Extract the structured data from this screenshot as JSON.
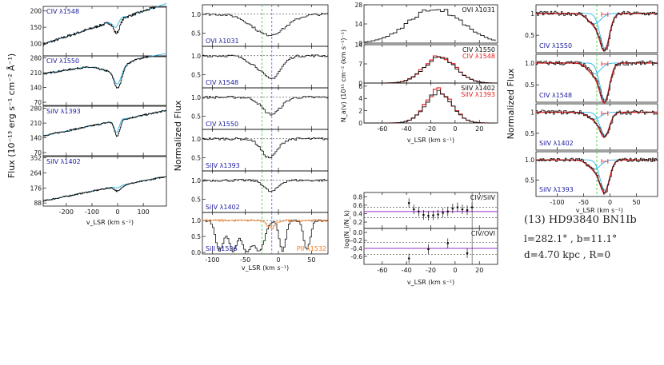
{
  "colors": {
    "black": "#111111",
    "blue": "#1a1aa0",
    "cyan": "#29b6e8",
    "red": "#e02020",
    "green": "#33cc33",
    "dashblue": "#3b6fd8",
    "purple": "#9a2fc7",
    "orange": "#f07a20",
    "gray": "#888888"
  },
  "star": {
    "name": "(13) HD93840 BN1Ib",
    "coords": "l=282.1°  , b=11.1°",
    "distance": "d=4.70 kpc  , R=0"
  },
  "chart_data": [
    {
      "id": "flux",
      "type": "line",
      "ylabel": "Flux  (10⁻¹³ erg s⁻¹ cm⁻² Å⁻¹)",
      "xlabel": "v_LSR  (km s⁻¹)",
      "xlim": [
        -290,
        190
      ],
      "xticks": [
        -200,
        -100,
        0,
        100
      ],
      "panels": [
        {
          "label": "CIV λ1548",
          "yticks": [
            "200",
            "150",
            "100"
          ],
          "yvals": [
            200,
            150,
            100
          ],
          "ylim": [
            62,
            214
          ]
        },
        {
          "label": "CIV λ1550",
          "yticks": [
            "280",
            "210",
            "140",
            "70"
          ],
          "yvals": [
            280,
            210,
            140,
            70
          ],
          "ylim": [
            55,
            290
          ]
        },
        {
          "label": "SiIV λ1393",
          "yticks": [
            "280",
            "210",
            "140",
            "70"
          ],
          "yvals": [
            280,
            210,
            140,
            70
          ],
          "ylim": [
            55,
            290
          ]
        },
        {
          "label": "SiIV λ1402",
          "yticks": [
            "352",
            "264",
            "176",
            "88"
          ],
          "yvals": [
            352,
            264,
            176,
            88
          ],
          "ylim": [
            70,
            360
          ]
        }
      ]
    },
    {
      "id": "normflux",
      "type": "line",
      "ylabel": "Normalized Flux",
      "xlabel": "v_LSR  (km s⁻¹)",
      "xlim": [
        -115,
        75
      ],
      "xticks": [
        -100,
        -50,
        0,
        50
      ],
      "vlines": [
        -25,
        -10
      ],
      "panels": [
        {
          "label": "OVI λ1031",
          "yticks": [
            "1.0",
            "0.5"
          ]
        },
        {
          "label": "CIV λ1548",
          "yticks": [
            "1.0",
            "0.5"
          ]
        },
        {
          "label": "CIV λ1550",
          "yticks": [
            "1.0",
            "0.5"
          ]
        },
        {
          "label": "SiIV λ1393",
          "yticks": [
            "1.0",
            "0.5"
          ]
        },
        {
          "label": "SiIV λ1402",
          "yticks": [
            "1.0",
            "0.5"
          ]
        },
        {
          "label": "SiII λ1526",
          "label2": "PII λ1532",
          "yticks": [
            "1.0",
            "0.5",
            "0.0"
          ]
        }
      ]
    },
    {
      "id": "nav",
      "type": "line",
      "ylabel": "N_a(v)  (10¹¹ cm⁻² (km s⁻¹)⁻¹)",
      "xlabel": "v_LSR  (km s⁻¹)",
      "xlim": [
        -75,
        35
      ],
      "xticks": [
        -60,
        -40,
        -20,
        0,
        20
      ],
      "panels": [
        {
          "label": "OVI λ1031",
          "yticks": [
            "28",
            "14",
            "0"
          ],
          "yvals": [
            28,
            14,
            0
          ]
        },
        {
          "label": "CIV λ1550",
          "label2": "CIV λ1548",
          "yticks": [
            "14",
            "7",
            "0"
          ],
          "yvals": [
            14,
            7,
            0
          ]
        },
        {
          "label": "SiIV λ1402",
          "label2": "SiIV λ1393",
          "yticks": [
            "6",
            "4",
            "2",
            "0"
          ],
          "yvals": [
            6,
            4,
            2,
            0
          ]
        }
      ]
    },
    {
      "id": "ratio",
      "type": "scatter",
      "ylabel": "log(N_i/N_k)",
      "xlabel": "v_LSR  (km s⁻¹)",
      "xlim": [
        -75,
        35
      ],
      "xticks": [
        -60,
        -40,
        -20,
        0,
        20
      ],
      "panels": [
        {
          "label": "CIV/SiIV",
          "yticks": [
            "0.8",
            "0.6",
            "0.4",
            "0.2"
          ],
          "yvals": [
            0.8,
            0.6,
            0.4,
            0.2
          ],
          "ylim": [
            0.05,
            0.9
          ],
          "hlines": [
            0.55,
            0.45,
            0.3
          ],
          "points": [
            [
              -38,
              0.65
            ],
            [
              -34,
              0.5
            ],
            [
              -30,
              0.45
            ],
            [
              -26,
              0.37
            ],
            [
              -22,
              0.35
            ],
            [
              -18,
              0.36
            ],
            [
              -14,
              0.38
            ],
            [
              -10,
              0.42
            ],
            [
              -6,
              0.45
            ],
            [
              -2,
              0.52
            ],
            [
              2,
              0.55
            ],
            [
              6,
              0.5
            ],
            [
              10,
              0.48
            ],
            [
              14,
              0.55
            ]
          ]
        },
        {
          "label": "CIV/OVI",
          "yticks": [
            "0.0",
            "-0.2",
            "-0.4",
            "-0.6"
          ],
          "yvals": [
            0,
            -0.2,
            -0.4,
            -0.6
          ],
          "ylim": [
            -0.8,
            0.1
          ],
          "hlines": [
            -0.25,
            -0.4,
            -0.55
          ],
          "points": [
            [
              -38,
              -0.65
            ],
            [
              -22,
              -0.42
            ],
            [
              -6,
              -0.27
            ],
            [
              10,
              -0.52
            ]
          ]
        }
      ]
    },
    {
      "id": "fits",
      "type": "line",
      "ylabel": "Normalized Flux",
      "xlabel": "v_LSR  (km s⁻¹)",
      "xlim": [
        -140,
        90
      ],
      "xticks": [
        -100,
        -50,
        0,
        50
      ],
      "panels": [
        {
          "label": "CIV λ1550",
          "yticks": [
            "1",
            "0.5"
          ]
        },
        {
          "label": "CIV λ1548",
          "yticks": [
            "1.0",
            "0.5"
          ]
        },
        {
          "label": "SiIV λ1402",
          "yticks": [
            "1",
            "0.5"
          ]
        },
        {
          "label": "SiIV λ1393",
          "yticks": [
            "1.0",
            "0.5"
          ]
        }
      ]
    }
  ]
}
